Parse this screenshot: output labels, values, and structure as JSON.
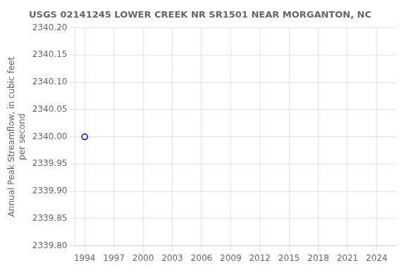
{
  "chart_data": {
    "type": "scatter",
    "title": "USGS 02141245 LOWER CREEK NR SR1501 NEAR MORGANTON, NC",
    "ylabel": "Annual Peak Streamflow, in cubic feet\nper second",
    "x": [
      1994
    ],
    "values": [
      2340.0
    ],
    "color": "#0000cc",
    "marker": "circle",
    "xlim": [
      1993,
      2026
    ],
    "ylim": [
      2339.8,
      2340.2
    ],
    "xticks": [
      1994,
      1997,
      2000,
      2003,
      2006,
      2009,
      2012,
      2015,
      2018,
      2021,
      2024
    ],
    "yticks": [
      {
        "value": 2339.8,
        "label": "2339.80"
      },
      {
        "value": 2339.85,
        "label": "2339.85"
      },
      {
        "value": 2339.9,
        "label": "2339.90"
      },
      {
        "value": 2339.95,
        "label": "2339.95"
      },
      {
        "value": 2340.0,
        "label": "2340.00"
      },
      {
        "value": 2340.05,
        "label": "2340.05"
      },
      {
        "value": 2340.1,
        "label": "2340.10"
      },
      {
        "value": 2340.15,
        "label": "2340.15"
      },
      {
        "value": 2340.2,
        "label": "2340.20"
      }
    ],
    "grid": true
  }
}
